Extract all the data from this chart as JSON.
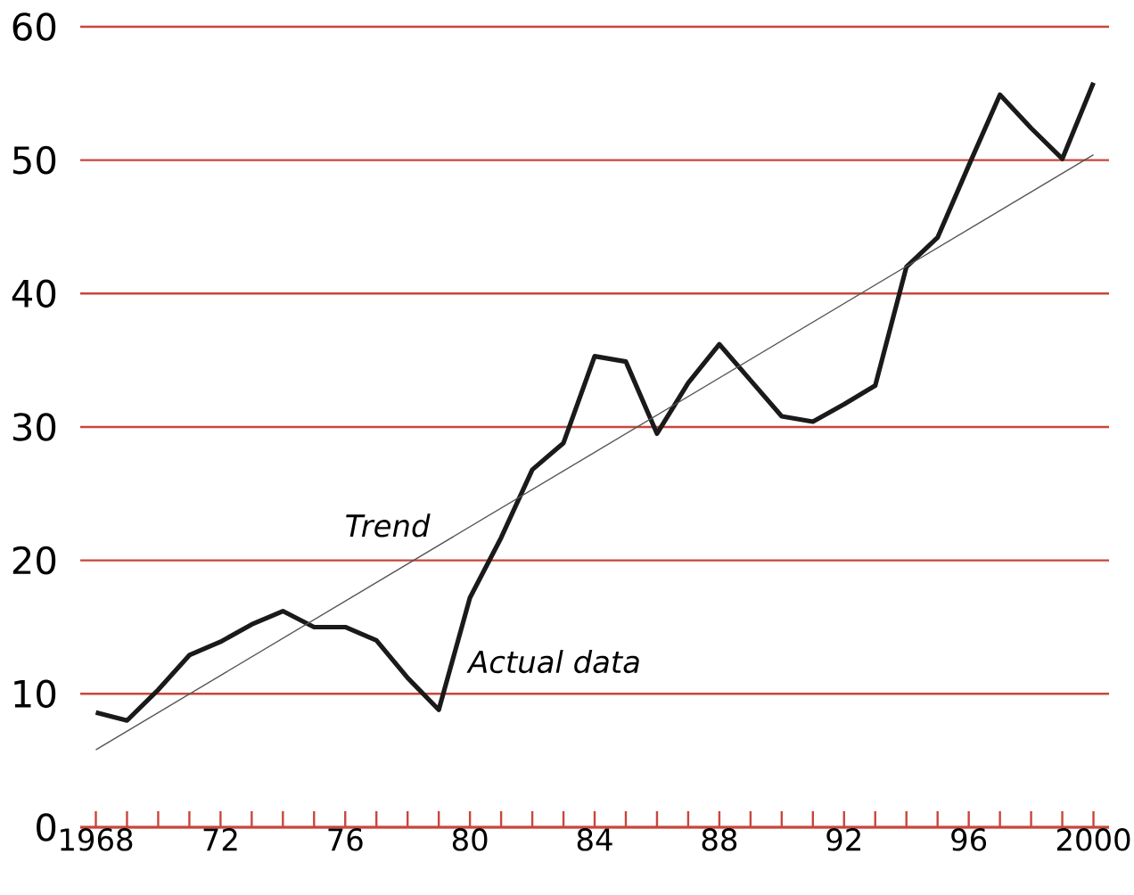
{
  "chart_data": {
    "type": "line",
    "x": [
      1968,
      1969,
      1970,
      1971,
      1972,
      1973,
      1974,
      1975,
      1976,
      1977,
      1978,
      1979,
      1980,
      1981,
      1982,
      1983,
      1984,
      1985,
      1986,
      1987,
      1988,
      1989,
      1990,
      1991,
      1992,
      1993,
      1994,
      1995,
      1996,
      1997,
      1998,
      1999,
      2000
    ],
    "series": [
      {
        "color": "#1a1a1a",
        "values": [
          8.6,
          8.0,
          10.3,
          12.9,
          13.9,
          15.2,
          16.2,
          15.0,
          15.0,
          14.0,
          11.2,
          8.8,
          17.2,
          21.7,
          26.8,
          28.8,
          35.3,
          34.9,
          29.5,
          33.3,
          36.2,
          33.5,
          30.8,
          30.4,
          31.7,
          33.1,
          42.0,
          44.2,
          49.6,
          54.9,
          52.4,
          50.1,
          55.8
        ]
      },
      {
        "type": "line",
        "color": "#555555",
        "x": [
          1968,
          2000
        ],
        "values": [
          5.8,
          50.4
        ]
      }
    ],
    "xlim": [
      1967.5,
      2000.5
    ],
    "ylim": [
      0,
      60
    ],
    "yticks": [
      0,
      10,
      20,
      30,
      40,
      50,
      60
    ],
    "xticks": [
      {
        "value": 1968,
        "label": "1968"
      },
      {
        "value": 1969,
        "label": null
      },
      {
        "value": 1970,
        "label": null
      },
      {
        "value": 1971,
        "label": null
      },
      {
        "value": 1972,
        "label": "72"
      },
      {
        "value": 1973,
        "label": null
      },
      {
        "value": 1974,
        "label": null
      },
      {
        "value": 1975,
        "label": null
      },
      {
        "value": 1976,
        "label": "76"
      },
      {
        "value": 1977,
        "label": null
      },
      {
        "value": 1978,
        "label": null
      },
      {
        "value": 1979,
        "label": null
      },
      {
        "value": 1980,
        "label": "80"
      },
      {
        "value": 1981,
        "label": null
      },
      {
        "value": 1982,
        "label": null
      },
      {
        "value": 1983,
        "label": null
      },
      {
        "value": 1984,
        "label": "84"
      },
      {
        "value": 1985,
        "label": null
      },
      {
        "value": 1986,
        "label": null
      },
      {
        "value": 1987,
        "label": null
      },
      {
        "value": 1988,
        "label": "88"
      },
      {
        "value": 1989,
        "label": null
      },
      {
        "value": 1990,
        "label": null
      },
      {
        "value": 1991,
        "label": null
      },
      {
        "value": 1992,
        "label": "92"
      },
      {
        "value": 1993,
        "label": null
      },
      {
        "value": 1994,
        "label": null
      },
      {
        "value": 1995,
        "label": null
      },
      {
        "value": 1996,
        "label": "96"
      },
      {
        "value": 1997,
        "label": null
      },
      {
        "value": 1998,
        "label": null
      },
      {
        "value": 1999,
        "label": null
      },
      {
        "value": 2000,
        "label": "2000"
      }
    ],
    "grid": "y",
    "annotations": [
      "Trend",
      "Actual data"
    ]
  }
}
